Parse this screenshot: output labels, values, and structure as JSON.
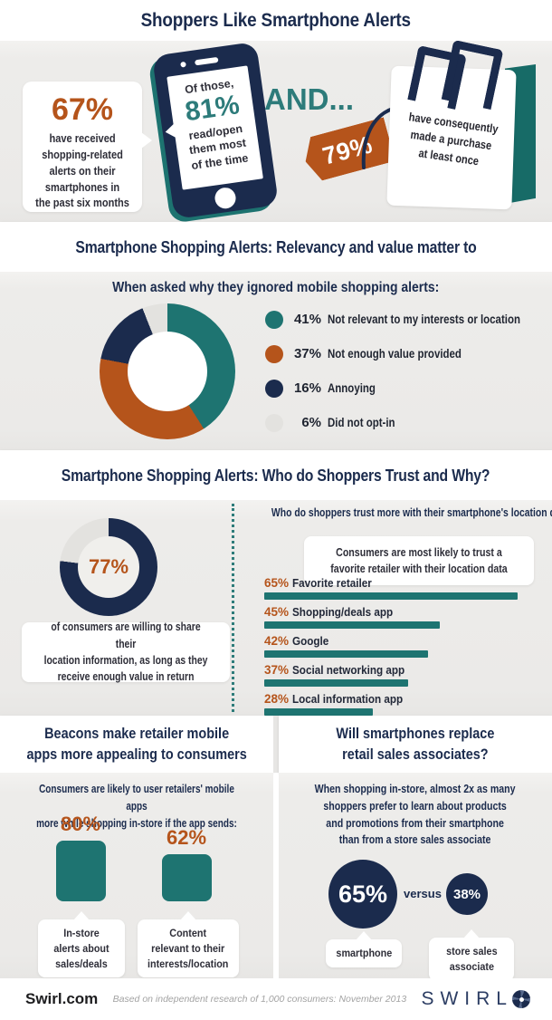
{
  "colors": {
    "navy": "#1b2b4d",
    "teal": "#1e7471",
    "teal_text": "#2d7b7a",
    "rust": "#b5541b",
    "light_gray_segment": "#e3e2df",
    "section_bg": "#ebeae8"
  },
  "header": {
    "title": "Shoppers Like Smartphone Alerts"
  },
  "intro": {
    "stat1_value": "67%",
    "stat1_text": "have received\nshopping-related\nalerts on their\nsmartphones in\nthe past six months",
    "phone_prefix": "Of those,",
    "phone_value": "81%",
    "phone_text": "read/open\nthem most\nof the time",
    "and_label": "AND...",
    "tag_value": "79%",
    "bag_text": "have consequently\nmade a purchase\nat least once"
  },
  "ignored": {
    "section_title": "Smartphone Shopping Alerts: Relevancy and value matter to consumers",
    "question": "When asked why they ignored mobile shopping alerts:"
  },
  "trust": {
    "section_title": "Smartphone Shopping Alerts: Who do Shoppers Trust and Why?",
    "donut_caption": "of consumers are willing to share their\nlocation information, as long as they\nreceive enough value in return",
    "question": "Who do shoppers trust more with their smartphone's location data?",
    "callout": "Consumers are most likely to trust a\nfavorite retailer with their location data"
  },
  "beacons": {
    "section_title": "Beacons make retailer mobile\napps more appealing to consumers",
    "intro": "Consumers are likely to user retailers' mobile apps\nmore while shopping in-store if the app sends:"
  },
  "replace": {
    "section_title": "Will smartphones replace\nretail sales associates?",
    "intro": "When shopping in-store, almost 2x as many\nshoppers prefer to learn about products\nand promotions from their smartphone\nthan from a store sales associate",
    "versus_label": "versus"
  },
  "footer": {
    "site": "Swirl.com",
    "source": "Based on independent research of 1,000 consumers: November 2013",
    "brand": "SWIRL"
  },
  "chart_data": [
    {
      "id": "ignored-reasons",
      "type": "pie",
      "title": "When asked why they ignored mobile shopping alerts:",
      "labels": [
        "Not relevant to my interests or location",
        "Not enough value provided",
        "Annoying",
        "Did not opt-in"
      ],
      "values": [
        41,
        37,
        16,
        6
      ],
      "pcts": [
        "41%",
        "37%",
        "16%",
        "6%"
      ],
      "colors": [
        "#1e7471",
        "#b5541b",
        "#1b2b4d",
        "#e3e2df"
      ],
      "legend_position": "right",
      "donut": true
    },
    {
      "id": "location-share",
      "type": "pie",
      "value": 77,
      "display": "77%",
      "label": "of consumers are willing to share their location information, as long as they receive enough value in return",
      "color": "#1b2b4d",
      "remainder_color": "#e3e2df",
      "donut": true
    },
    {
      "id": "trust-bars",
      "type": "bar",
      "title": "Who do shoppers trust more with their smartphone's location data?",
      "categories": [
        "Favorite retailer",
        "Shopping/deals app",
        "Google",
        "Social networking app",
        "Local information app"
      ],
      "values": [
        65,
        45,
        42,
        37,
        28
      ],
      "pcts": [
        "65%",
        "45%",
        "42%",
        "37%",
        "28%"
      ],
      "bar_color": "#1e7471",
      "xlim": [
        0,
        100
      ]
    },
    {
      "id": "beacon-bars",
      "type": "bar",
      "categories": [
        "In-store alerts about sales/deals",
        "Content relevant to their interests/location"
      ],
      "labels_display": [
        "In-store\nalerts about\nsales/deals",
        "Content\nrelevant to their\ninterests/location"
      ],
      "values": [
        80,
        62
      ],
      "pcts": [
        "80%",
        "62%"
      ],
      "bar_color": "#1e7471"
    },
    {
      "id": "smartphone-vs-associate",
      "type": "pie",
      "categories": [
        "smartphone",
        "store sales associate"
      ],
      "labels_display": [
        "smartphone",
        "store sales\nassociate"
      ],
      "values": [
        65,
        38
      ],
      "pcts": [
        "65%",
        "38%"
      ],
      "color": "#1b2b4d"
    }
  ]
}
